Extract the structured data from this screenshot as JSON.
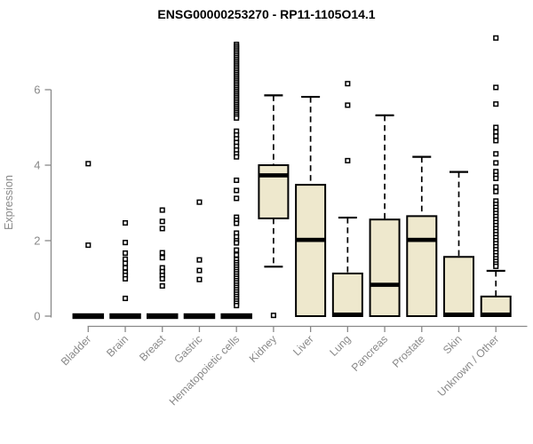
{
  "chart_data": {
    "type": "boxplot",
    "title": "ENSG00000253270 - RP11-1105O14.1",
    "ylabel": "Expression",
    "xlabel": "",
    "yticks": [
      0,
      2,
      4,
      6
    ],
    "ylim": [
      -0.3,
      7.6
    ],
    "grid": false,
    "legend": "none",
    "colors": {
      "box_fill": "#EEE8CD",
      "box_stroke": "#000000",
      "median": "#000000",
      "whisker": "#000000",
      "outlier_stroke": "#000000",
      "outlier_fill": "#ffffff",
      "axis": "#898989",
      "title_color": "#000000",
      "background": "#ffffff"
    },
    "categories": [
      "Bladder",
      "Brain",
      "Breast",
      "Gastric",
      "Hematopoietic cells",
      "Kidney",
      "Liver",
      "Lung",
      "Pancreas",
      "Prostate",
      "Skin",
      "Unknown / Other"
    ],
    "series": [
      {
        "name": "Bladder",
        "q1": 0,
        "median": 0,
        "q3": 0,
        "whisker_low": 0,
        "whisker_high": 0,
        "outliers": [
          4.04,
          1.88
        ]
      },
      {
        "name": "Brain",
        "q1": 0,
        "median": 0,
        "q3": 0,
        "whisker_low": 0,
        "whisker_high": 0,
        "outliers": [
          2.47,
          1.95,
          1.67,
          1.51,
          1.4,
          1.28,
          1.16,
          1.08,
          0.99,
          0.47
        ]
      },
      {
        "name": "Breast",
        "q1": 0,
        "median": 0,
        "q3": 0,
        "whisker_low": 0,
        "whisker_high": 0,
        "outliers": [
          2.81,
          2.51,
          2.32,
          1.68,
          1.55,
          1.28,
          1.18,
          1.08,
          0.99,
          0.8
        ]
      },
      {
        "name": "Gastric",
        "q1": 0,
        "median": 0,
        "q3": 0,
        "whisker_low": 0,
        "whisker_high": 0,
        "outliers": [
          3.02,
          1.49,
          1.21,
          0.97
        ]
      },
      {
        "name": "Hematopoietic cells",
        "q1": 0,
        "median": 0,
        "q3": 0,
        "whisker_low": 0,
        "whisker_high": 0,
        "outliers": [
          7.2,
          7.15,
          7.1,
          7.05,
          7.0,
          6.95,
          6.9,
          6.85,
          6.8,
          6.75,
          6.7,
          6.65,
          6.6,
          6.55,
          6.5,
          6.45,
          6.4,
          6.35,
          6.3,
          6.25,
          6.2,
          6.15,
          6.1,
          6.05,
          6.0,
          5.95,
          5.9,
          5.85,
          5.8,
          5.75,
          5.7,
          5.65,
          5.6,
          5.55,
          5.5,
          5.45,
          5.4,
          5.35,
          5.3,
          5.25,
          4.9,
          4.8,
          4.7,
          4.6,
          4.5,
          4.4,
          4.3,
          4.22,
          3.6,
          3.33,
          3.12,
          2.62,
          2.54,
          2.46,
          2.2,
          2.1,
          2.0,
          1.94,
          1.75,
          1.62,
          1.5,
          1.42,
          1.36,
          1.3,
          1.24,
          1.18,
          1.12,
          1.06,
          1.0,
          0.94,
          0.88,
          0.82,
          0.76,
          0.7,
          0.64,
          0.58,
          0.52,
          0.46,
          0.4,
          0.34,
          0.28
        ]
      },
      {
        "name": "Kidney",
        "q1": 2.59,
        "median": 3.73,
        "q3": 4.0,
        "whisker_low": 1.31,
        "whisker_high": 5.85,
        "outliers": [
          0.02
        ]
      },
      {
        "name": "Liver",
        "q1": 0,
        "median": 2.02,
        "q3": 3.48,
        "whisker_low": 0,
        "whisker_high": 5.81,
        "outliers": []
      },
      {
        "name": "Lung",
        "q1": 0,
        "median": 0.04,
        "q3": 1.13,
        "whisker_low": 0,
        "whisker_high": 2.61,
        "outliers": [
          6.16,
          5.59,
          4.12
        ]
      },
      {
        "name": "Pancreas",
        "q1": 0,
        "median": 0.83,
        "q3": 2.56,
        "whisker_low": 0,
        "whisker_high": 5.32,
        "outliers": []
      },
      {
        "name": "Prostate",
        "q1": 0,
        "median": 2.02,
        "q3": 2.65,
        "whisker_low": 0,
        "whisker_high": 4.22,
        "outliers": []
      },
      {
        "name": "Skin",
        "q1": 0,
        "median": 0.04,
        "q3": 1.57,
        "whisker_low": 0,
        "whisker_high": 3.82,
        "outliers": []
      },
      {
        "name": "Unknown / Other",
        "q1": 0,
        "median": 0.04,
        "q3": 0.52,
        "whisker_low": 0,
        "whisker_high": 1.2,
        "outliers": [
          7.37,
          6.06,
          5.62,
          5.0,
          4.88,
          4.77,
          4.65,
          4.3,
          4.06,
          3.83,
          3.73,
          3.65,
          3.42,
          3.3,
          3.05,
          2.96,
          2.88,
          2.8,
          2.72,
          2.64,
          2.56,
          2.48,
          2.4,
          2.32,
          2.24,
          2.16,
          2.08,
          2.0,
          1.92,
          1.84,
          1.76,
          1.68,
          1.6,
          1.52,
          1.45,
          1.38,
          1.32
        ]
      }
    ]
  }
}
